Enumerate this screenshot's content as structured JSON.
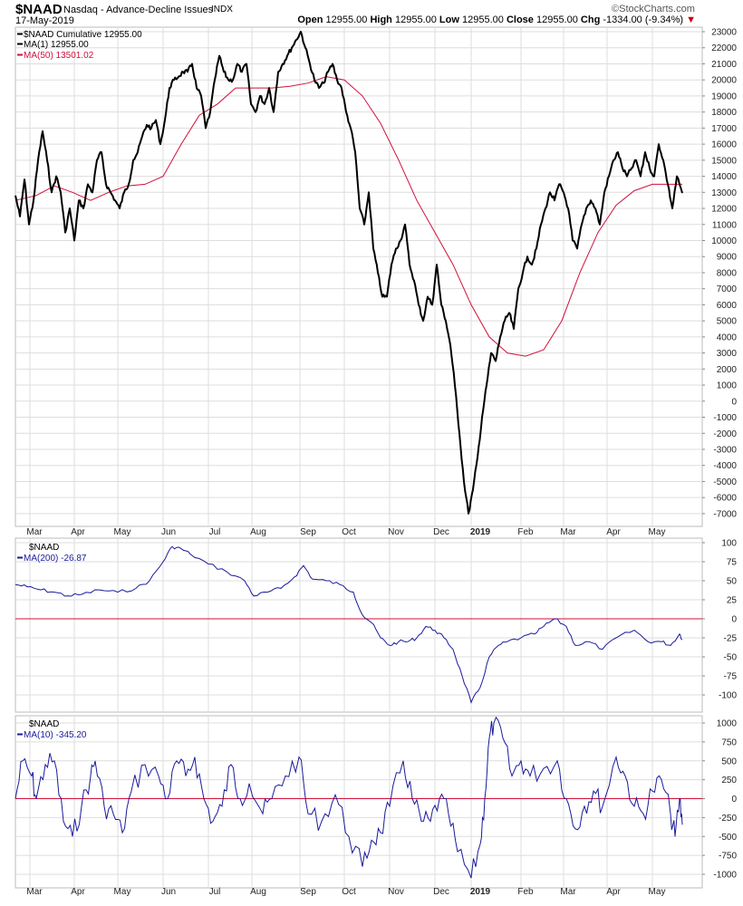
{
  "header": {
    "symbol": "$NAAD",
    "name": "Nasdaq - Advance-Decline Issues",
    "exchange": "INDX",
    "date": "17-May-2019",
    "brand": "©StockCharts.com",
    "open_label": "Open",
    "open": "12955.00",
    "high_label": "High",
    "high": "12955.00",
    "low_label": "Low",
    "low": "12955.00",
    "close_label": "Close",
    "close": "12955.00",
    "chg_label": "Chg",
    "chg": "-1334.00 (-9.34%)"
  },
  "colors": {
    "price": "#000000",
    "ma50": "#d0103a",
    "indicator": "#1a1a9c",
    "zero": "#d0103a",
    "grid": "#dddddd"
  },
  "chart_data": [
    {
      "type": "line",
      "title": "$NAAD Cumulative",
      "legend": [
        "$NAAD Cumulative 12955.00",
        "MA(1) 12955.00",
        "MA(50) 13501.02"
      ],
      "ylim": [
        -7500,
        23500
      ],
      "yticks": [
        23000,
        22000,
        21000,
        20000,
        19000,
        18000,
        17000,
        16000,
        15000,
        14000,
        13000,
        12000,
        11000,
        10000,
        9000,
        8000,
        7000,
        6000,
        5000,
        4000,
        3000,
        2000,
        1000,
        0,
        -1000,
        -2000,
        -3000,
        -4000,
        -5000,
        -6000,
        -7000
      ],
      "xticks": [
        "Mar",
        "Apr",
        "May",
        "Jun",
        "Jul",
        "Aug",
        "Sep",
        "Oct",
        "Nov",
        "Dec",
        "2019",
        "Feb",
        "Mar",
        "Apr",
        "May"
      ],
      "series": [
        {
          "name": "$NAAD",
          "values": [
            12800,
            11500,
            13800,
            11000,
            12500,
            15000,
            16800,
            15000,
            13000,
            14000,
            13000,
            10500,
            12000,
            10000,
            12500,
            12000,
            13500,
            13000,
            15000,
            15500,
            13500,
            13000,
            12500,
            12000,
            13000,
            13500,
            15000,
            15500,
            16500,
            17200,
            17000,
            17500,
            16000,
            17500,
            19500,
            20000,
            20200,
            20500,
            20500,
            21000,
            19500,
            19000,
            17000,
            18000,
            20000,
            21500,
            20500,
            20000,
            20000,
            21000,
            20500,
            21000,
            18500,
            18000,
            19000,
            18500,
            19500,
            18000,
            20500,
            21000,
            21500,
            22000,
            22500,
            23000,
            22000,
            21000,
            20000,
            19500,
            19800,
            20500,
            21000,
            20000,
            19500,
            18000,
            17000,
            15500,
            12000,
            11000,
            13000,
            9500,
            8000,
            6500,
            6500,
            8500,
            9500,
            10000,
            11000,
            8500,
            7500,
            6000,
            5000,
            6500,
            6000,
            8500,
            6000,
            5000,
            3500,
            1000,
            -2000,
            -5000,
            -7000,
            -5500,
            -3500,
            -1000,
            1000,
            3000,
            2500,
            4000,
            5000,
            5500,
            4500,
            7000,
            8000,
            9000,
            8500,
            9500,
            11000,
            12000,
            13000,
            12500,
            13500,
            13000,
            12000,
            10000,
            9500,
            11000,
            12000,
            12500,
            12000,
            11000,
            13000,
            14000,
            15000,
            15500,
            14500,
            14000,
            14500,
            15000,
            14000,
            15500,
            14500,
            14000,
            16000,
            15000,
            13500,
            12000,
            14000,
            12955
          ]
        },
        {
          "name": "MA(50)",
          "values": [
            12500,
            12800,
            13400,
            13000,
            12500,
            13000,
            13400,
            13500,
            14000,
            16000,
            17800,
            18500,
            19500,
            19500,
            19500,
            19600,
            19800,
            20200,
            20000,
            19000,
            17300,
            15000,
            12500,
            10500,
            8500,
            6000,
            4000,
            3000,
            2800,
            3200,
            5000,
            8000,
            10500,
            12200,
            13100,
            13500,
            13500,
            13501
          ]
        }
      ]
    },
    {
      "type": "line",
      "legend": [
        "$NAAD",
        "MA(200) -26.87"
      ],
      "ylim": [
        -120,
        105
      ],
      "yticks": [
        100,
        75,
        50,
        25,
        0,
        -25,
        -50,
        -75,
        -100
      ],
      "zero_line": 0,
      "series": [
        {
          "name": "MA(200)",
          "values": [
            45,
            42,
            38,
            35,
            30,
            32,
            38,
            35,
            40,
            50,
            75,
            95,
            92,
            85,
            72,
            62,
            50,
            30,
            35,
            40,
            55,
            70,
            52,
            50,
            45,
            35,
            5,
            -5,
            -25,
            -35,
            -30,
            -30,
            -25,
            -10,
            -15,
            -25,
            -40,
            -75,
            -110,
            -90,
            -50,
            -35,
            -30,
            -25,
            -20,
            -10,
            0,
            -10,
            -35,
            -30,
            -40,
            -25,
            -15,
            -30,
            -30,
            -35,
            -20,
            -27
          ]
        }
      ]
    },
    {
      "type": "line",
      "legend": [
        "$NAAD",
        "MA(10) -345.20"
      ],
      "ylim": [
        -1100,
        1050
      ],
      "yticks": [
        1000,
        750,
        500,
        250,
        0,
        -250,
        -500,
        -750,
        -1000
      ],
      "zero_line": 0,
      "series": [
        {
          "name": "MA(10)",
          "values": [
            0,
            500,
            300,
            0,
            450,
            500,
            -300,
            -500,
            -100,
            300,
            500,
            -100,
            -200,
            -450,
            100,
            450,
            300,
            0,
            500,
            300,
            550,
            0,
            -300,
            -100,
            450,
            0,
            200,
            -200,
            0,
            300,
            550,
            -200,
            -300,
            50,
            -500,
            -900,
            -550,
            -450,
            -100,
            500,
            0,
            -300,
            -300,
            0,
            -200,
            -700,
            -1050,
            -600,
            0,
            800,
            1000,
            800,
            300,
            500,
            300,
            400,
            500,
            0,
            -400,
            -100,
            100,
            -100,
            550,
            300,
            -100,
            -200,
            100,
            250,
            -200,
            -500,
            0,
            -345
          ]
        }
      ]
    }
  ]
}
